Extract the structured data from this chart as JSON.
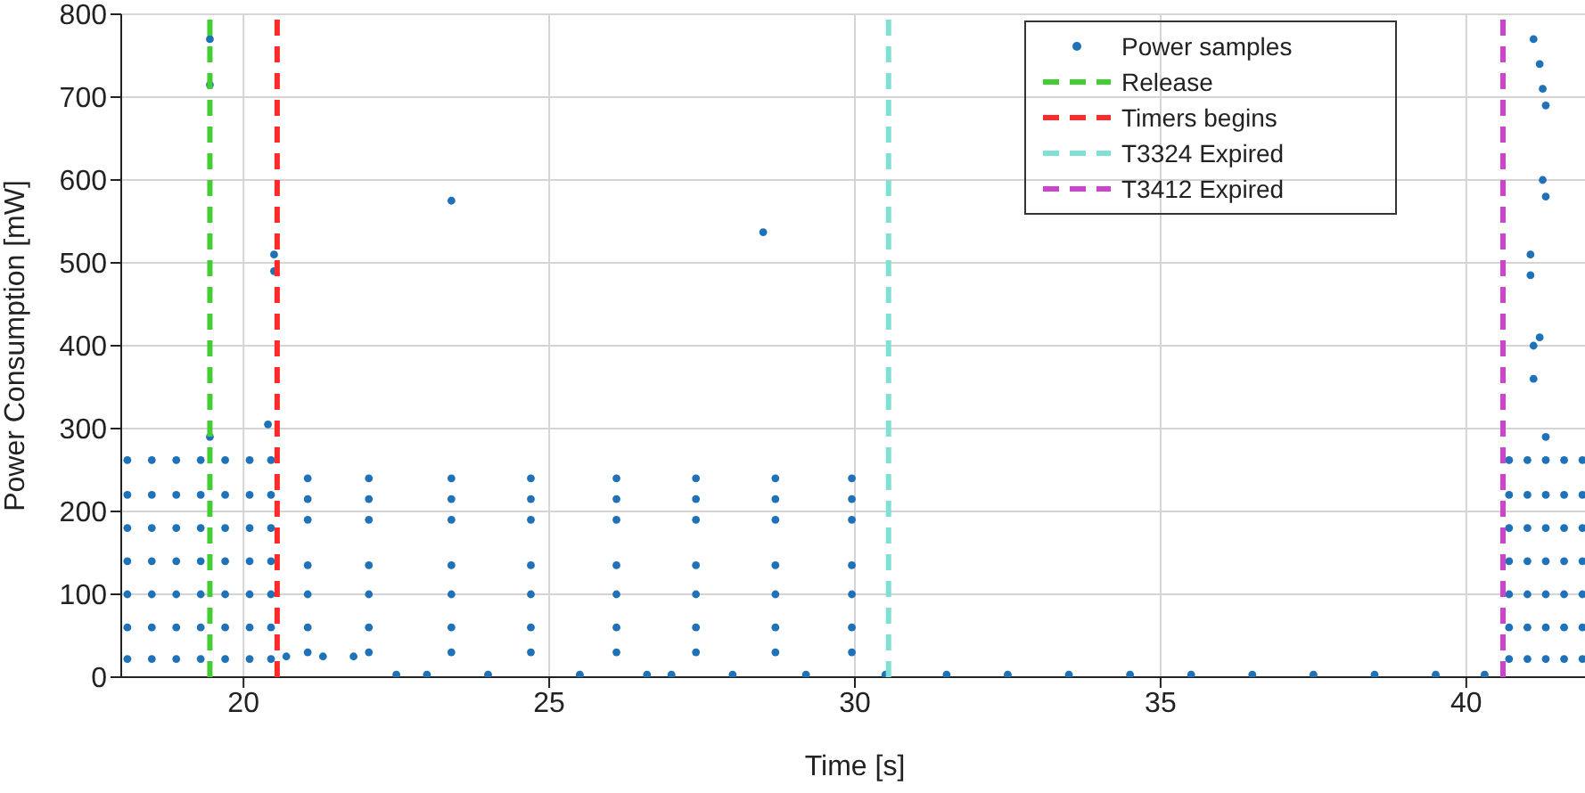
{
  "chart_data": {
    "type": "scatter",
    "xlabel": "Time [s]",
    "ylabel": "Power Consumption [mW]",
    "xlim": [
      18,
      42
    ],
    "xticks": [
      20,
      25,
      30,
      35,
      40
    ],
    "ylim": [
      0,
      800
    ],
    "yticks": [
      0,
      100,
      200,
      300,
      400,
      500,
      600,
      700,
      800
    ],
    "grid": true,
    "legend": "top right",
    "series": [
      {
        "name": "Power samples",
        "color": "#1f72b8",
        "marker": "circle",
        "x": [
          18.1,
          18.1,
          18.1,
          18.1,
          18.1,
          18.1,
          18.1,
          18.5,
          18.5,
          18.5,
          18.5,
          18.5,
          18.5,
          18.5,
          18.9,
          18.9,
          18.9,
          18.9,
          18.9,
          18.9,
          18.9,
          19.3,
          19.3,
          19.3,
          19.3,
          19.3,
          19.3,
          19.3,
          19.7,
          19.7,
          19.7,
          19.7,
          19.7,
          19.7,
          19.7,
          20.1,
          20.1,
          20.1,
          20.1,
          20.1,
          20.1,
          20.1,
          20.45,
          20.45,
          20.45,
          20.45,
          20.45,
          20.45,
          20.45,
          40.7,
          40.7,
          40.7,
          40.7,
          40.7,
          40.7,
          40.7,
          41.0,
          41.0,
          41.0,
          41.0,
          41.0,
          41.0,
          41.0,
          41.3,
          41.3,
          41.3,
          41.3,
          41.3,
          41.3,
          41.3,
          41.6,
          41.6,
          41.6,
          41.6,
          41.6,
          41.6,
          41.6,
          41.9,
          41.9,
          41.9,
          41.9,
          41.9,
          41.9,
          41.9,
          21.05,
          21.05,
          21.05,
          21.05,
          21.05,
          21.05,
          21.05,
          22.05,
          22.05,
          22.05,
          22.05,
          22.05,
          22.05,
          22.05,
          23.4,
          23.4,
          23.4,
          23.4,
          23.4,
          23.4,
          23.4,
          24.7,
          24.7,
          24.7,
          24.7,
          24.7,
          24.7,
          24.7,
          26.1,
          26.1,
          26.1,
          26.1,
          26.1,
          26.1,
          26.1,
          27.4,
          27.4,
          27.4,
          27.4,
          27.4,
          27.4,
          27.4,
          28.7,
          28.7,
          28.7,
          28.7,
          28.7,
          28.7,
          28.7,
          29.95,
          29.95,
          29.95,
          29.95,
          29.95,
          29.95,
          29.95,
          20.7,
          21.3,
          21.8,
          22.5,
          23.0,
          24.0,
          25.5,
          26.6,
          27.0,
          28.0,
          29.2,
          30.5,
          31.5,
          32.5,
          33.5,
          34.5,
          35.5,
          36.5,
          37.5,
          38.5,
          39.5,
          40.3,
          19.45,
          19.45,
          19.45,
          20.5,
          20.5,
          20.4,
          23.4,
          28.5,
          41.1,
          41.2,
          41.25,
          41.3,
          41.25,
          41.3,
          41.05,
          41.05,
          41.1,
          41.2,
          41.1,
          41.3
        ],
        "values": [
          22,
          60,
          100,
          140,
          180,
          220,
          262,
          22,
          60,
          100,
          140,
          180,
          220,
          262,
          22,
          60,
          100,
          140,
          180,
          220,
          262,
          22,
          60,
          100,
          140,
          180,
          220,
          262,
          22,
          60,
          100,
          140,
          180,
          220,
          262,
          22,
          60,
          100,
          140,
          180,
          220,
          262,
          22,
          60,
          100,
          140,
          180,
          220,
          262,
          22,
          60,
          100,
          140,
          180,
          220,
          262,
          22,
          60,
          100,
          140,
          180,
          220,
          262,
          22,
          60,
          100,
          140,
          180,
          220,
          262,
          22,
          60,
          100,
          140,
          180,
          220,
          262,
          22,
          60,
          100,
          140,
          180,
          220,
          262,
          30,
          60,
          100,
          135,
          190,
          215,
          240,
          30,
          60,
          100,
          135,
          190,
          215,
          240,
          30,
          60,
          100,
          135,
          190,
          215,
          240,
          30,
          60,
          100,
          135,
          190,
          215,
          240,
          30,
          60,
          100,
          135,
          190,
          215,
          240,
          30,
          60,
          100,
          135,
          190,
          215,
          240,
          30,
          60,
          100,
          135,
          190,
          215,
          240,
          30,
          60,
          100,
          135,
          190,
          215,
          240,
          25,
          25,
          25,
          3,
          3,
          3,
          3,
          3,
          3,
          3,
          3,
          3,
          3,
          3,
          3,
          3,
          3,
          3,
          3,
          3,
          3,
          3,
          770,
          715,
          290,
          510,
          490,
          305,
          575,
          537,
          770,
          740,
          710,
          690,
          600,
          580,
          510,
          485,
          400,
          410,
          360,
          290
        ]
      },
      {
        "name": "Release",
        "type": "line",
        "color": "#44cc33",
        "line_style": "dashed",
        "x": [
          19.45,
          19.45
        ],
        "values": [
          0,
          800
        ]
      },
      {
        "name": "Timers begins",
        "type": "line",
        "color": "#ff2a2a",
        "line_style": "dashed",
        "x": [
          20.55,
          20.55
        ],
        "values": [
          0,
          800
        ]
      },
      {
        "name": "T3324 Expired",
        "type": "line",
        "color": "#80e0d4",
        "line_style": "dashed",
        "x": [
          30.55,
          30.55
        ],
        "values": [
          0,
          800
        ]
      },
      {
        "name": "T3412 Expired",
        "type": "line",
        "color": "#cc44cc",
        "line_style": "dashed",
        "x": [
          40.6,
          40.6
        ],
        "values": [
          0,
          800
        ]
      }
    ]
  }
}
